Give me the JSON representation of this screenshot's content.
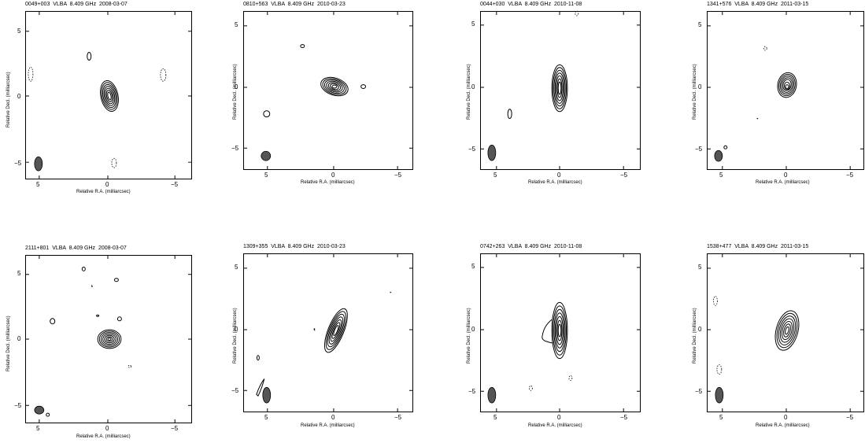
{
  "panels": [
    {
      "title": "0049+003  VLBA  8.409 GHz  2008-03-07",
      "xlabel": "Relative R.A. (milliarcsec)",
      "ylabel": "Relative Decl. (milliarcsec)",
      "xticks": [
        "5",
        "0",
        "−5"
      ],
      "yticks": [
        "5",
        "0",
        "−5"
      ]
    },
    {
      "title": "0810+563  VLBA  8.409 GHz  2010-03-23",
      "xlabel": "Relative R.A. (milliarcsec)",
      "ylabel": "Relative Decl. (milliarcsec)",
      "xticks": [
        "5",
        "0",
        "−5"
      ],
      "yticks": [
        "5",
        "0",
        "−5"
      ]
    },
    {
      "title": "0044+030  VLBA  8.409 GHz  2010-11-08",
      "xlabel": "Relative R.A. (milliarcsec)",
      "ylabel": "Relative Decl. (milliarcsec)",
      "xticks": [
        "5",
        "0",
        "−5"
      ],
      "yticks": [
        "5",
        "0",
        "−5"
      ]
    },
    {
      "title": "1341+576  VLBA  8.409 GHz  2011-03-15",
      "xlabel": "Relative R.A. (milliarcsec)",
      "ylabel": "Relative Decl. (milliarcsec)",
      "xticks": [
        "5",
        "0",
        "−5"
      ],
      "yticks": [
        "5",
        "0",
        "−5"
      ]
    },
    {
      "title": "2111+801  VLBA  8.409 GHz  2008-03-07",
      "xlabel": "Relative R.A. (milliarcsec)",
      "ylabel": "Relative Decl. (milliarcsec)",
      "xticks": [
        "5",
        "0",
        "−5"
      ],
      "yticks": [
        "5",
        "0",
        "−5"
      ]
    },
    {
      "title": "1309+355  VLBA  8.409 GHz  2010-03-23",
      "xlabel": "Relative R.A. (milliarcsec)",
      "ylabel": "Relative Decl. (milliarcsec)",
      "xticks": [
        "5",
        "0",
        "−5"
      ],
      "yticks": [
        "5",
        "0",
        "−5"
      ]
    },
    {
      "title": "0742+263  VLBA  8.409 GHz  2010-11-08",
      "xlabel": "Relative R.A. (milliarcsec)",
      "ylabel": "Relative Decl. (milliarcsec)",
      "xticks": [
        "5",
        "0",
        "−5"
      ],
      "yticks": [
        "5",
        "0",
        "−5"
      ]
    },
    {
      "title": "1538+477  VLBA  8.409 GHz  2011-03-15",
      "xlabel": "Relative R.A. (milliarcsec)",
      "ylabel": "Relative Decl. (milliarcsec)",
      "xticks": [
        "5",
        "0",
        "−5"
      ],
      "yticks": [
        "5",
        "0",
        "−5"
      ]
    }
  ]
}
